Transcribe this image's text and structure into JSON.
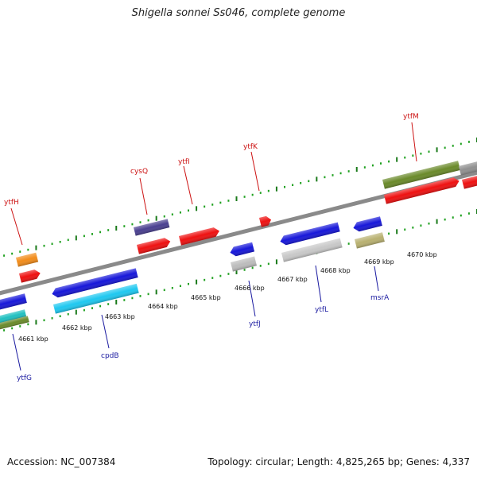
{
  "title": "Shigella sonnei Ss046, complete genome",
  "footer": {
    "accession": "Accession: NC_007384",
    "summary": "Topology: circular; Length: 4,825,265 bp; Genes: 4,337"
  },
  "colors": {
    "upper_label": "#cc1111",
    "lower_label": "#1a1aa0",
    "backbone": "#8a8a8a",
    "tick_major": "#1a7a1a",
    "tick_minor": "#1fa01f"
  },
  "scale_labels": [
    "4661 kbp",
    "4662 kbp",
    "4663 kbp",
    "4664 kbp",
    "4665 kbp",
    "4666 kbp",
    "4667 kbp",
    "4668 kbp",
    "4669 kbp",
    "4670 kbp"
  ],
  "upper_gene_labels": [
    "ytfH",
    "cysQ",
    "ytfI",
    "ytfK",
    "ytfM"
  ],
  "lower_gene_labels": [
    "ytfG",
    "cpdB",
    "ytfJ",
    "ytfL",
    "msrA"
  ]
}
